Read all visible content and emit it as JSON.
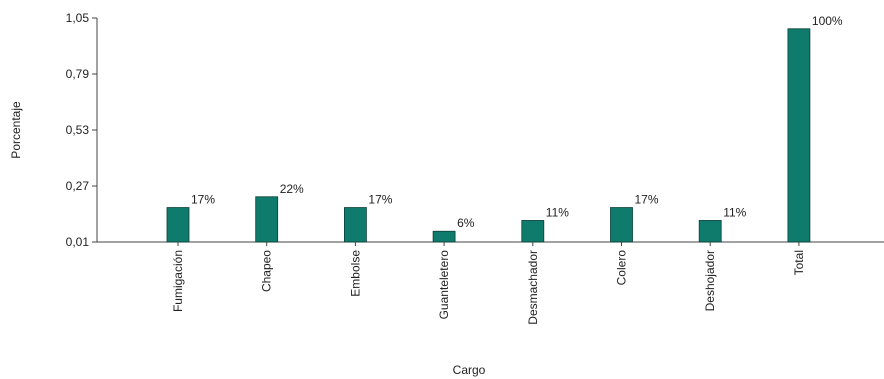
{
  "chart_data": {
    "type": "bar",
    "categories": [
      "Fumigación",
      "Chapeo",
      "Embolse",
      "Guanteletero",
      "Desmachador",
      "Colero",
      "Deshojador",
      "Total"
    ],
    "values": [
      0.17,
      0.22,
      0.17,
      0.06,
      0.11,
      0.17,
      0.11,
      1.0
    ],
    "data_labels": [
      "17%",
      "22%",
      "17%",
      "6%",
      "11%",
      "17%",
      "11%",
      "100%"
    ],
    "xlabel": "Cargo",
    "ylabel": "Porcentaje",
    "ylim": [
      0.01,
      1.05
    ],
    "yticks": [
      0.01,
      0.27,
      0.53,
      0.79,
      1.05
    ],
    "ytick_labels": [
      "0,01",
      "0,27",
      "0,53",
      "0,79",
      "1,05"
    ],
    "grid": false,
    "bar_color": "#0f7b6c"
  }
}
